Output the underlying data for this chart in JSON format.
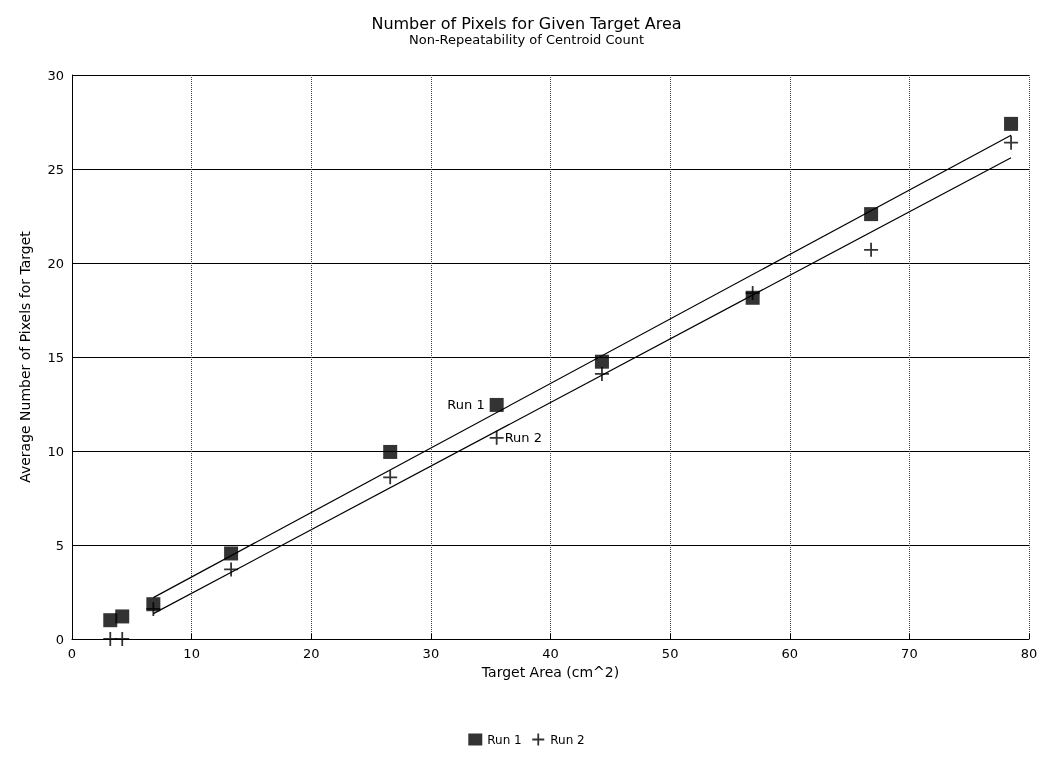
{
  "chart_data": {
    "type": "scatter",
    "title": "Number of Pixels for Given Target Area",
    "subtitle": "Non-Repeatability of Centroid Count",
    "xlabel": "Target Area (cm^2)",
    "ylabel": "Average Number of Pixels for Target",
    "xlim": [
      0,
      80
    ],
    "xticks": [
      0,
      10,
      20,
      30,
      40,
      50,
      60,
      70,
      80
    ],
    "ylim": [
      0,
      30
    ],
    "yticks": [
      0,
      5,
      10,
      15,
      20,
      25,
      30
    ],
    "grid": true,
    "legend": "bottom",
    "series": [
      {
        "name": "Run 1",
        "color": "#000000",
        "marker": "square",
        "x": [
          3.2,
          4.2,
          6.8,
          13.3,
          26.6,
          35.5,
          44.3,
          56.9,
          66.8,
          78.5
        ],
        "values": [
          1.0,
          1.2,
          1.85,
          4.55,
          9.95,
          12.45,
          14.75,
          18.15,
          22.6,
          27.4
        ]
      },
      {
        "name": "Run 2",
        "color": "#000000",
        "marker": "cross",
        "x": [
          3.2,
          4.2,
          6.8,
          13.3,
          26.6,
          35.5,
          44.3,
          56.9,
          66.8,
          78.5
        ],
        "values": [
          0,
          0,
          1.6,
          3.7,
          8.6,
          10.7,
          14.1,
          18.4,
          20.7,
          26.4
        ]
      },
      {
        "type": "line",
        "color": "#000000",
        "marker": "none",
        "x": [
          6.8,
          78.5
        ],
        "values": [
          2.2,
          26.8
        ]
      },
      {
        "type": "line",
        "color": "#000000",
        "marker": "none",
        "x": [
          6.8,
          78.5
        ],
        "values": [
          1.35,
          25.6
        ]
      }
    ],
    "annotations": [
      {
        "text": "Run 1",
        "x": 35.5,
        "y": 12.45
      },
      {
        "text": "Run 2",
        "x": 35.5,
        "y": 10.7
      }
    ]
  }
}
